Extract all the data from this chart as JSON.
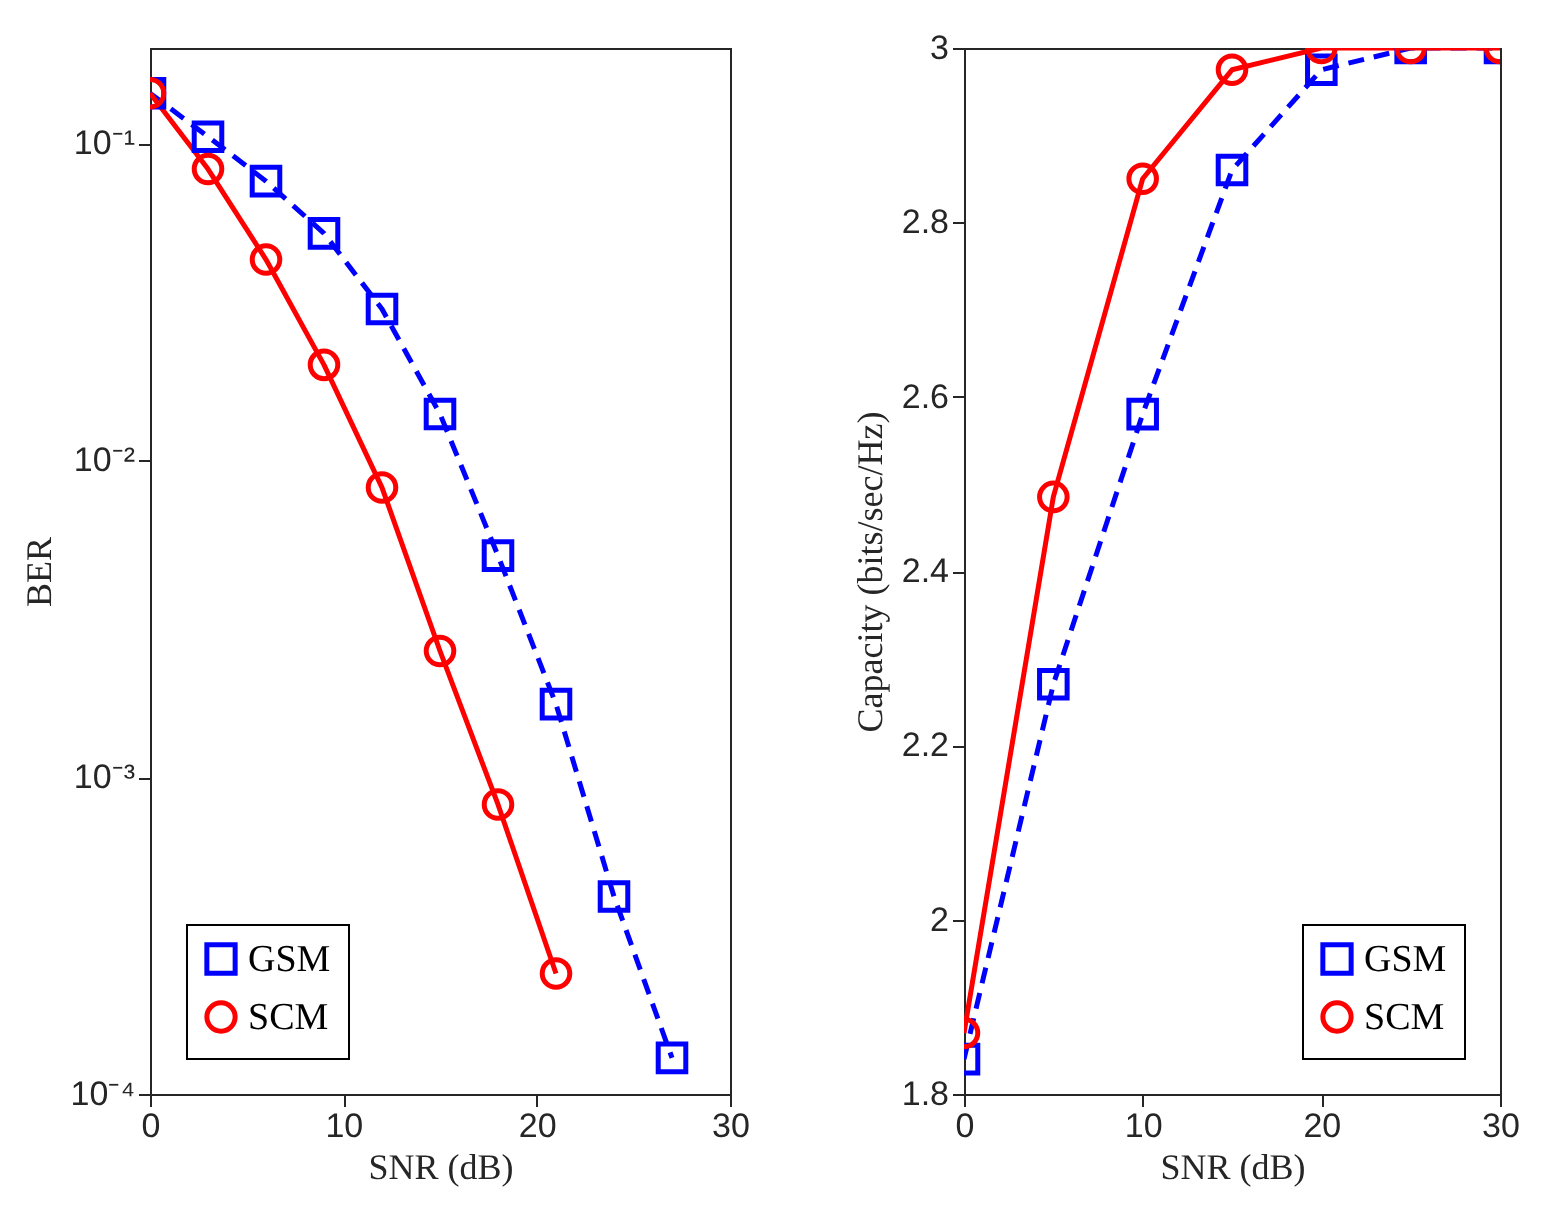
{
  "chart_data": [
    {
      "type": "line",
      "xlabel": "SNR (dB)",
      "ylabel": "BER",
      "log": "y",
      "grid": false,
      "legend": "bottom left",
      "xlim": [
        0,
        30
      ],
      "xticks": [
        0,
        10,
        20,
        30
      ],
      "ylim": [
        0.0001,
        0.2
      ],
      "yticks": [
        {
          "value": 0.0001,
          "label": "10⁻⁴"
        },
        {
          "value": 0.001,
          "label": "10⁻³"
        },
        {
          "value": 0.01,
          "label": "10⁻²"
        },
        {
          "value": 0.1,
          "label": "10⁻¹"
        }
      ],
      "series": [
        {
          "name": "GSM",
          "color": "#0000ff",
          "marker": "square",
          "line_style": "dashed",
          "x": [
            0,
            3,
            6,
            9,
            12,
            15,
            18,
            21,
            24,
            27
          ],
          "values": [
            0.144,
            0.105,
            0.076,
            0.052,
            0.03,
            0.014,
            0.005,
            0.0017,
            0.00042,
            0.00013
          ]
        },
        {
          "name": "SCM",
          "color": "#ff0000",
          "marker": "circle",
          "line_style": "solid",
          "x": [
            0,
            3,
            6,
            9,
            12,
            15,
            18,
            21
          ],
          "values": [
            0.144,
            0.083,
            0.043,
            0.02,
            0.0082,
            0.0025,
            0.00082,
            0.00024
          ]
        }
      ]
    },
    {
      "type": "line",
      "xlabel": "SNR (dB)",
      "ylabel": "Capacity (bits/sec/Hz)",
      "grid": false,
      "legend": "bottom right",
      "xlim": [
        0,
        30
      ],
      "xticks": [
        0,
        10,
        20,
        30
      ],
      "ylim": [
        1.8,
        3
      ],
      "yticks": [
        1.8,
        2,
        2.2,
        2.4,
        2.6,
        2.8,
        3
      ],
      "series": [
        {
          "name": "GSM",
          "color": "#0000ff",
          "marker": "square",
          "line_style": "dashed",
          "x": [
            0,
            5,
            10,
            15,
            20,
            25,
            30
          ],
          "values": [
            1.84,
            2.27,
            2.58,
            2.86,
            2.975,
            3.0,
            3.0
          ]
        },
        {
          "name": "SCM",
          "color": "#ff0000",
          "marker": "circle",
          "line_style": "solid",
          "x": [
            0,
            5,
            10,
            15,
            20,
            25,
            30
          ],
          "values": [
            1.87,
            2.485,
            2.85,
            2.975,
            3.0,
            3.0,
            3.0
          ]
        }
      ]
    }
  ]
}
